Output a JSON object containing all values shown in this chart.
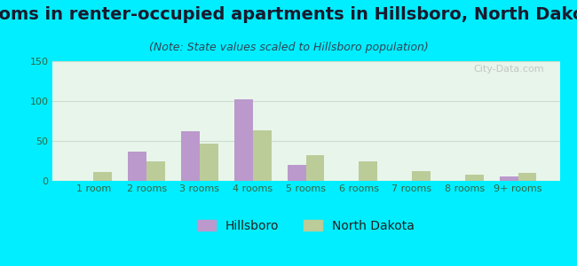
{
  "title": "Rooms in renter-occupied apartments in Hillsboro, North Dakota",
  "subtitle": "(Note: State values scaled to Hillsboro population)",
  "categories": [
    "1 room",
    "2 rooms",
    "3 rooms",
    "4 rooms",
    "5 rooms",
    "6 rooms",
    "7 rooms",
    "8 rooms",
    "9+ rooms"
  ],
  "hillsboro_values": [
    0,
    37,
    62,
    102,
    20,
    0,
    0,
    0,
    6
  ],
  "nd_values": [
    11,
    25,
    47,
    63,
    32,
    24,
    12,
    8,
    10
  ],
  "hillsboro_color": "#bb99cc",
  "nd_color": "#bbcc99",
  "background_outer": "#00eeff",
  "ylim": [
    0,
    150
  ],
  "yticks": [
    0,
    50,
    100,
    150
  ],
  "bar_width": 0.35,
  "title_fontsize": 14,
  "subtitle_fontsize": 9,
  "tick_fontsize": 8,
  "legend_fontsize": 10,
  "watermark": "City-Data.com"
}
